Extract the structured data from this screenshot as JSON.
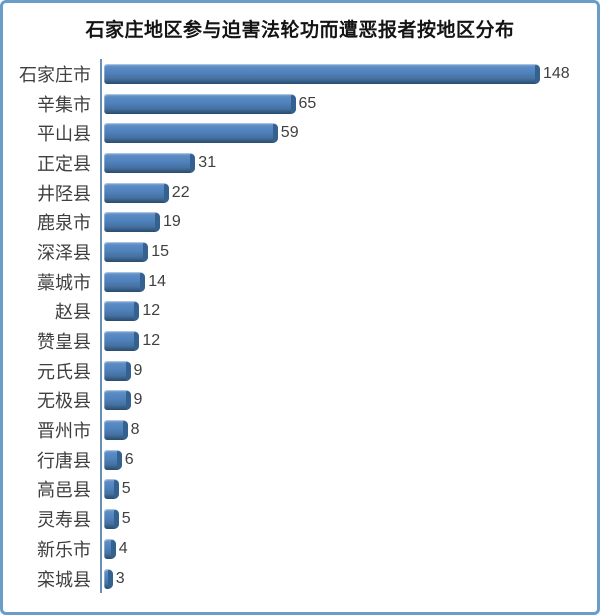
{
  "title": "石家庄地区参与迫害法轮功而遭恶报者按地区分布",
  "chart_data": {
    "type": "bar",
    "orientation": "horizontal",
    "style": "3d-bevel",
    "title": "石家庄地区参与迫害法轮功而遭恶报者按地区分布",
    "categories": [
      "石家庄市",
      "辛集市",
      "平山县",
      "正定县",
      "井陉县",
      "鹿泉市",
      "深泽县",
      "藁城市",
      "赵县",
      "赞皇县",
      "元氏县",
      "无极县",
      "晋州市",
      "行唐县",
      "高邑县",
      "灵寿县",
      "新乐市",
      "栾城县"
    ],
    "values": [
      148,
      65,
      59,
      31,
      22,
      19,
      15,
      14,
      12,
      12,
      9,
      9,
      8,
      6,
      5,
      5,
      4,
      3
    ],
    "xlabel": "",
    "ylabel": "",
    "xlim": [
      0,
      150
    ],
    "grid": false,
    "legend": "none",
    "data_labels": true,
    "colors": {
      "bar": "#4f81bd",
      "bar_highlight": "#8cb0da",
      "bar_shadow": "#2f577e",
      "bar_cap": "#35618e",
      "axis_line": "#6a8fb5",
      "category_text": "#3f3f3f",
      "value_text": "#404040",
      "title_text": "#141414",
      "frame_border": "#6b9dc9",
      "background": "#ffffff"
    }
  }
}
